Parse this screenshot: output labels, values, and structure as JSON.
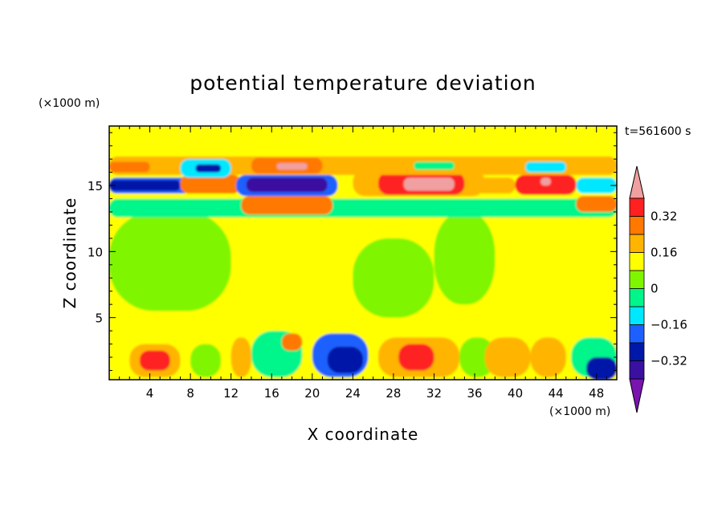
{
  "chart_data": {
    "type": "heatmap",
    "title": "potential temperature deviation",
    "xlabel": "X coordinate",
    "ylabel": "Z coordinate",
    "x_unit": "(×1000 m)",
    "y_unit": "(×1000 m)",
    "time_label": "t=561600 s",
    "xlim": [
      0,
      50
    ],
    "ylim": [
      0.3,
      19.5
    ],
    "x_ticks": [
      4,
      8,
      12,
      16,
      20,
      24,
      28,
      32,
      36,
      40,
      44,
      48
    ],
    "y_ticks": [
      5,
      10,
      15
    ],
    "colorbar": {
      "levels": [
        -0.48,
        -0.4,
        -0.32,
        -0.24,
        -0.16,
        -0.08,
        0,
        0.08,
        0.16,
        0.24,
        0.32,
        0.4,
        0.48
      ],
      "tick_values": [
        0.32,
        0.16,
        0,
        -0.16,
        -0.32
      ],
      "tick_labels": [
        "0.32",
        "0.16",
        "0",
        "−0.16",
        "−0.32"
      ],
      "colors": [
        "#7a14ae",
        "#3a10a0",
        "#0018a8",
        "#1e60ff",
        "#00e8ff",
        "#00f58a",
        "#7ff500",
        "#ffff00",
        "#ffb400",
        "#ff7800",
        "#ff2020",
        "#f0a0a0"
      ],
      "extend": "both"
    },
    "regions": [
      {
        "x": [
          0,
          50
        ],
        "z": [
          0.3,
          19.5
        ],
        "value": 0.04
      },
      {
        "x": [
          0,
          12
        ],
        "z": [
          5.5,
          13
        ],
        "value": -0.04
      },
      {
        "x": [
          24,
          32
        ],
        "z": [
          5,
          11
        ],
        "value": -0.04
      },
      {
        "x": [
          32,
          38
        ],
        "z": [
          6,
          13
        ],
        "value": -0.04
      },
      {
        "x": [
          0,
          50
        ],
        "z": [
          0.3,
          3.5
        ],
        "value": 0.06
      },
      {
        "x": [
          2,
          7
        ],
        "z": [
          0.5,
          3
        ],
        "value": 0.14
      },
      {
        "x": [
          3,
          6
        ],
        "z": [
          1,
          2.5
        ],
        "value": 0.26
      },
      {
        "x": [
          8,
          11
        ],
        "z": [
          0.5,
          3
        ],
        "value": -0.06
      },
      {
        "x": [
          12,
          14
        ],
        "z": [
          0.5,
          3.5
        ],
        "value": 0.12
      },
      {
        "x": [
          14,
          19
        ],
        "z": [
          0.5,
          4
        ],
        "value": -0.1
      },
      {
        "x": [
          17,
          19
        ],
        "z": [
          2.5,
          3.8
        ],
        "value": 0.22
      },
      {
        "x": [
          20,
          25.5
        ],
        "z": [
          0.5,
          3.8
        ],
        "value": -0.28
      },
      {
        "x": [
          21.5,
          25
        ],
        "z": [
          0.8,
          2.8
        ],
        "value": -0.38
      },
      {
        "x": [
          26.5,
          34.5
        ],
        "z": [
          0.5,
          3.5
        ],
        "value": 0.14
      },
      {
        "x": [
          28.5,
          32
        ],
        "z": [
          1,
          3
        ],
        "value": 0.26
      },
      {
        "x": [
          34.5,
          38
        ],
        "z": [
          0.5,
          3.5
        ],
        "value": -0.04
      },
      {
        "x": [
          37,
          41.5
        ],
        "z": [
          0.5,
          3.5
        ],
        "value": 0.14
      },
      {
        "x": [
          41.5,
          45
        ],
        "z": [
          0.5,
          3.5
        ],
        "value": 0.1
      },
      {
        "x": [
          45.5,
          50
        ],
        "z": [
          0.5,
          3.5
        ],
        "value": -0.12
      },
      {
        "x": [
          47,
          50
        ],
        "z": [
          0.3,
          2
        ],
        "value": -0.34
      },
      {
        "x": [
          0,
          50
        ],
        "z": [
          12.6,
          14
        ],
        "value": -0.1
      },
      {
        "x": [
          13,
          22
        ],
        "z": [
          12.8,
          14.2
        ],
        "value": 0.2
      },
      {
        "x": [
          46,
          50
        ],
        "z": [
          13,
          14.2
        ],
        "value": 0.22
      },
      {
        "x": [
          0,
          8
        ],
        "z": [
          14.4,
          15.6
        ],
        "value": -0.28
      },
      {
        "x": [
          0,
          7
        ],
        "z": [
          14.6,
          15.4
        ],
        "value": -0.38
      },
      {
        "x": [
          7,
          13
        ],
        "z": [
          14.4,
          15.8
        ],
        "value": 0.18
      },
      {
        "x": [
          12.5,
          22.5
        ],
        "z": [
          14.2,
          15.8
        ],
        "value": -0.3
      },
      {
        "x": [
          13.5,
          21.5
        ],
        "z": [
          14.5,
          15.6
        ],
        "value": -0.44
      },
      {
        "x": [
          24,
          37
        ],
        "z": [
          14.2,
          16.2
        ],
        "value": 0.14
      },
      {
        "x": [
          26.5,
          35
        ],
        "z": [
          14.3,
          16
        ],
        "value": 0.3
      },
      {
        "x": [
          29,
          34
        ],
        "z": [
          14.6,
          15.6
        ],
        "value": 0.45
      },
      {
        "x": [
          36,
          40
        ],
        "z": [
          14.4,
          15.6
        ],
        "value": 0.1
      },
      {
        "x": [
          40,
          46
        ],
        "z": [
          14.3,
          15.8
        ],
        "value": 0.24
      },
      {
        "x": [
          42.5,
          43.5
        ],
        "z": [
          15,
          15.6
        ],
        "value": 0.45
      },
      {
        "x": [
          46,
          50
        ],
        "z": [
          14.4,
          15.6
        ],
        "value": -0.2
      },
      {
        "x": [
          0,
          50
        ],
        "z": [
          15.8,
          17.2
        ],
        "value": 0.1
      },
      {
        "x": [
          7,
          12
        ],
        "z": [
          15.6,
          17
        ],
        "value": -0.2
      },
      {
        "x": [
          8.5,
          11
        ],
        "z": [
          16,
          16.6
        ],
        "value": -0.36
      },
      {
        "x": [
          14,
          21
        ],
        "z": [
          15.9,
          17.1
        ],
        "value": 0.22
      },
      {
        "x": [
          16.5,
          19.5
        ],
        "z": [
          16.2,
          16.7
        ],
        "value": 0.34
      },
      {
        "x": [
          30,
          34
        ],
        "z": [
          16.2,
          16.8
        ],
        "value": -0.14
      },
      {
        "x": [
          41,
          45
        ],
        "z": [
          16,
          16.8
        ],
        "value": -0.18
      },
      {
        "x": [
          0,
          4
        ],
        "z": [
          16,
          16.8
        ],
        "value": 0.22
      }
    ]
  }
}
